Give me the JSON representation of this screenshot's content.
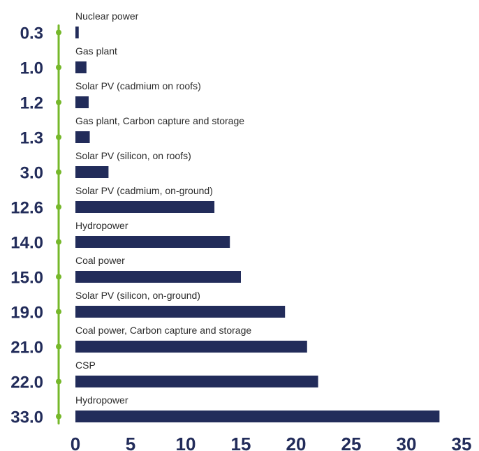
{
  "chart_data": {
    "type": "bar",
    "orientation": "horizontal",
    "categories": [
      "Nuclear power",
      "Gas plant",
      "Solar PV (cadmium on roofs)",
      "Gas plant, Carbon capture and storage",
      "Solar PV (silicon, on roofs)",
      "Solar PV (cadmium, on-ground)",
      "Hydropower",
      "Coal power",
      "Solar PV (silicon, on-ground)",
      "Coal power, Carbon capture and storage",
      "CSP",
      "Hydropower"
    ],
    "value_labels": [
      "0.3",
      "1.0",
      "1.2",
      "1.3",
      "3.0",
      "12.6",
      "14.0",
      "15.0",
      "19.0",
      "21.0",
      "22.0",
      "33.0"
    ],
    "values": [
      0.3,
      1.0,
      1.2,
      1.3,
      3.0,
      12.6,
      14.0,
      15.0,
      19.0,
      21.0,
      22.0,
      33.0
    ],
    "x_ticks": [
      "0",
      "5",
      "10",
      "15",
      "20",
      "25",
      "30",
      "35"
    ],
    "xlim": [
      0,
      35
    ],
    "title": "",
    "xlabel": "",
    "ylabel": "",
    "grid": false,
    "legend": "none",
    "colors": {
      "bar": "#222c5a",
      "axis": "#76b82a",
      "text": "#222c5a",
      "label": "#2b2b2b"
    }
  }
}
